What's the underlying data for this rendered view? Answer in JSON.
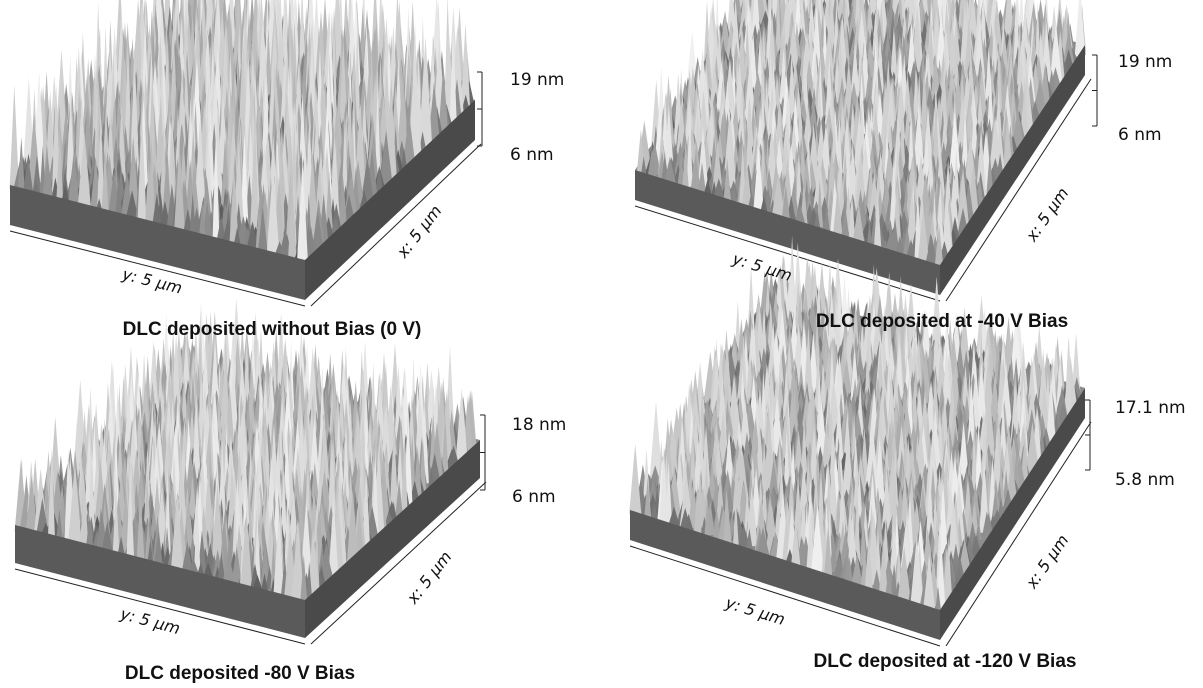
{
  "panels": [
    {
      "caption": "DLC deposited without Bias (0 V)",
      "z_max": "19 nm",
      "z_min": "6 nm",
      "x_axis": "x: 5 µm",
      "y_axis": "y: 5 µm"
    },
    {
      "caption": "DLC deposited at -40 V Bias",
      "z_max": "19 nm",
      "z_min": "6 nm",
      "x_axis": "x: 5 µm",
      "y_axis": "y: 5 µm"
    },
    {
      "caption": "DLC deposited -80 V Bias",
      "z_max": "18 nm",
      "z_min": "6 nm",
      "x_axis": "x: 5 µm",
      "y_axis": "y: 5 µm"
    },
    {
      "caption": "DLC deposited at -120 V Bias",
      "z_max": "17.1 nm",
      "z_min": "5.8 nm",
      "x_axis": "x: 5 µm",
      "y_axis": "y: 5 µm"
    }
  ]
}
